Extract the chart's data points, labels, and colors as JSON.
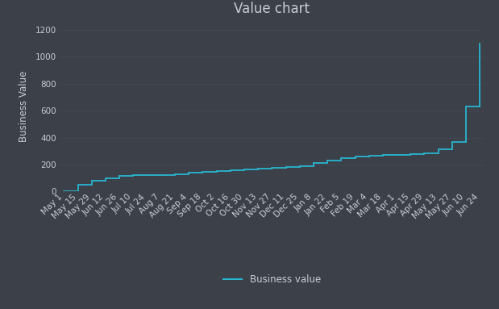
{
  "title": "Value chart",
  "ylabel": "Business Value",
  "legend_label": "Business value",
  "background_color": "#3b4049",
  "plot_bg_color": "#3b4049",
  "line_color": "#29b6d0",
  "text_color": "#c8cdd4",
  "grid_color": "#4a5060",
  "ylim": [
    0,
    1260
  ],
  "yticks": [
    0,
    200,
    400,
    600,
    800,
    1000,
    1200
  ],
  "x_labels": [
    "May 1",
    "May 15",
    "May 29",
    "Jun 12",
    "Jun 26",
    "Jul 10",
    "Jul 24",
    "Aug 7",
    "Aug 21",
    "Sep 4",
    "Sep 18",
    "Oct 2",
    "Oct 16",
    "Oct 30",
    "Nov 13",
    "Nov 27",
    "Dec 11",
    "Dec 25",
    "Jan 8",
    "Jan 22",
    "Feb 5",
    "Feb 19",
    "Mar 4",
    "Mar 18",
    "Apr 1",
    "Apr 15",
    "Apr 29",
    "May 13",
    "May 27",
    "Jun 10",
    "Jun 24"
  ],
  "y_values": [
    0,
    50,
    80,
    100,
    115,
    120,
    122,
    125,
    130,
    140,
    148,
    152,
    158,
    163,
    170,
    178,
    185,
    190,
    210,
    230,
    248,
    262,
    268,
    270,
    273,
    278,
    285,
    315,
    370,
    630,
    1100
  ],
  "title_fontsize": 12,
  "label_fontsize": 8.5,
  "tick_fontsize": 7.5
}
